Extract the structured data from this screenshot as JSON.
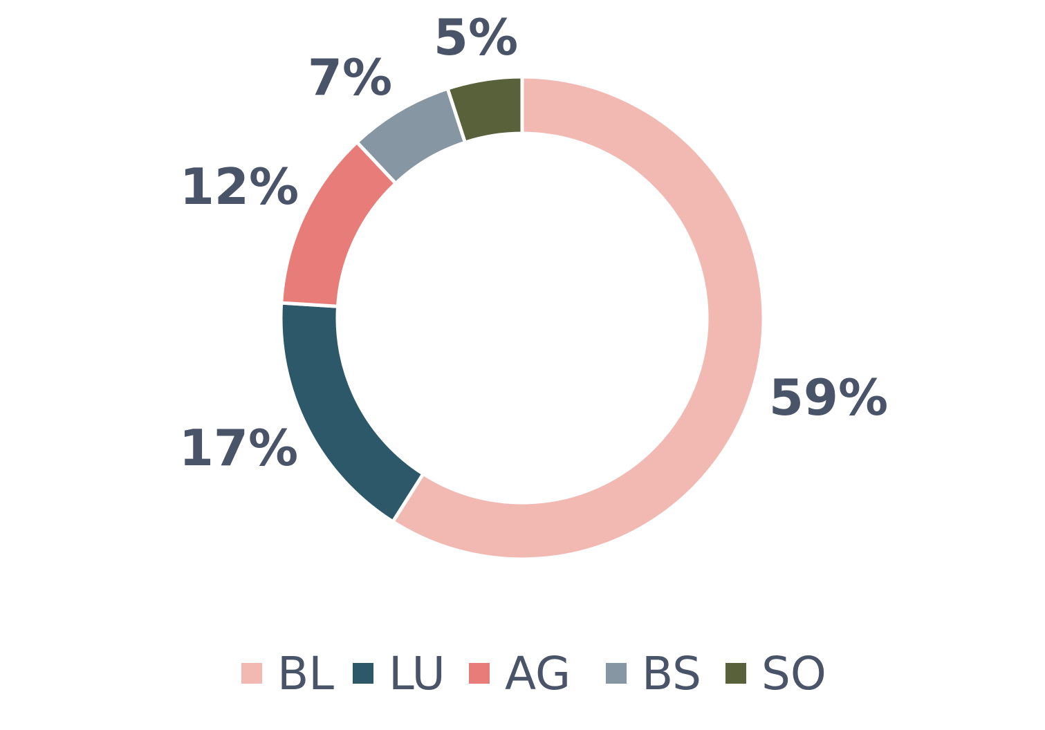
{
  "chart_data": {
    "type": "pie",
    "style": "donut",
    "categories": [
      "BL",
      "LU",
      "AG",
      "BS",
      "SO"
    ],
    "values": [
      59,
      17,
      12,
      7,
      5
    ],
    "data_labels": [
      "59%",
      "17%",
      "12%",
      "7%",
      "5%"
    ],
    "colors": [
      "#f2b9b3",
      "#2c5869",
      "#e77c78",
      "#8796a3",
      "#58613a"
    ],
    "title": "",
    "legend_position": "bottom"
  }
}
